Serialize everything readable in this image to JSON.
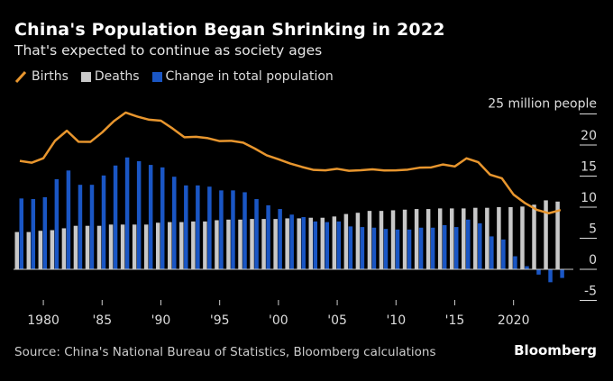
{
  "title": "China's Population Began Shrinking in 2022",
  "subtitle": "That's expected to continue as society ages",
  "source": "Source: China's National Bureau of Statistics, Bloomberg calculations",
  "logo": "Bloomberg",
  "chart_data": {
    "type": "bar+line",
    "unit_label": "25 million people",
    "x": [
      1978,
      1979,
      1980,
      1981,
      1982,
      1983,
      1984,
      1985,
      1986,
      1987,
      1988,
      1989,
      1990,
      1991,
      1992,
      1993,
      1994,
      1995,
      1996,
      1997,
      1998,
      1999,
      2000,
      2001,
      2002,
      2003,
      2004,
      2005,
      2006,
      2007,
      2008,
      2009,
      2010,
      2011,
      2012,
      2013,
      2014,
      2015,
      2016,
      2017,
      2018,
      2019,
      2020,
      2021,
      2022,
      2023,
      2024
    ],
    "x_ticks": [
      {
        "year": 1980,
        "label": "1980"
      },
      {
        "year": 1985,
        "label": "'85"
      },
      {
        "year": 1990,
        "label": "'90"
      },
      {
        "year": 1995,
        "label": "'95"
      },
      {
        "year": 2000,
        "label": "'00"
      },
      {
        "year": 2005,
        "label": "'05"
      },
      {
        "year": 2010,
        "label": "'10"
      },
      {
        "year": 2015,
        "label": "'15"
      },
      {
        "year": 2020,
        "label": "2020"
      }
    ],
    "y_ticks": [
      25,
      20,
      15,
      10,
      5,
      0,
      -5
    ],
    "ylim": [
      -5,
      25
    ],
    "grid": false,
    "legend_placement": "top-left",
    "series": [
      {
        "name": "Births",
        "type": "line",
        "color": "#e8962e",
        "values": [
          17.45,
          17.15,
          17.87,
          20.69,
          22.3,
          20.52,
          20.5,
          22.02,
          23.84,
          25.22,
          24.57,
          24.07,
          23.91,
          22.65,
          21.25,
          21.32,
          21.1,
          20.63,
          20.67,
          20.38,
          19.42,
          18.34,
          17.71,
          17.02,
          16.47,
          15.99,
          15.93,
          16.17,
          15.85,
          15.94,
          16.08,
          15.91,
          15.92,
          16.04,
          16.35,
          16.4,
          16.87,
          16.55,
          17.86,
          17.23,
          15.23,
          14.65,
          12.02,
          10.62,
          9.56,
          9.02,
          9.54
        ]
      },
      {
        "name": "Deaths",
        "type": "bar",
        "color": "#c8c8c8",
        "values": [
          6.0,
          6.0,
          6.2,
          6.3,
          6.6,
          7.0,
          7.0,
          7.0,
          7.2,
          7.2,
          7.2,
          7.2,
          7.5,
          7.6,
          7.6,
          7.7,
          7.7,
          7.9,
          8.0,
          8.0,
          8.1,
          8.1,
          8.1,
          8.2,
          8.2,
          8.3,
          8.3,
          8.5,
          8.9,
          9.1,
          9.4,
          9.4,
          9.5,
          9.6,
          9.7,
          9.7,
          9.8,
          9.8,
          9.8,
          9.9,
          9.9,
          10.0,
          10.0,
          10.1,
          10.4,
          11.1,
          10.9
        ]
      },
      {
        "name": "Change in total population",
        "type": "bar",
        "color": "#1a56c4",
        "values": [
          11.4,
          11.3,
          11.6,
          14.5,
          15.9,
          13.6,
          13.6,
          15.1,
          16.7,
          18.0,
          17.4,
          16.8,
          16.4,
          14.9,
          13.5,
          13.5,
          13.3,
          12.7,
          12.7,
          12.4,
          11.3,
          10.3,
          9.7,
          8.8,
          8.4,
          7.7,
          7.6,
          7.7,
          6.9,
          6.8,
          6.7,
          6.5,
          6.4,
          6.4,
          6.7,
          6.7,
          7.1,
          6.8,
          8.0,
          7.4,
          5.3,
          4.8,
          2.1,
          0.5,
          -0.85,
          -2.08,
          -1.39
        ]
      }
    ]
  }
}
